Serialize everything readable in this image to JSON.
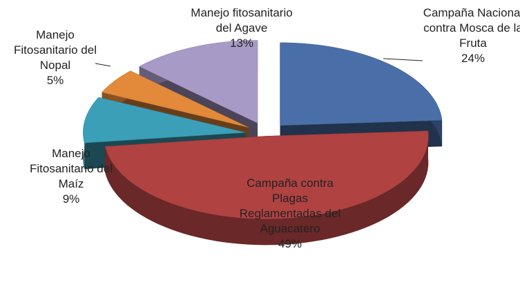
{
  "chart_data": {
    "type": "pie",
    "categories": [
      "Campaña Nacional contra Mosca de la Fruta",
      "Campaña contra Plagas Reglamentadas del Aguacatero",
      "Manejo Fitosanitario del Maíz",
      "Manejo Fitosanitario del Nopal",
      "Manejo fitosanitario del Agave"
    ],
    "values": [
      24,
      49,
      9,
      5,
      13
    ],
    "value_labels": [
      "24%",
      "49%",
      "9%",
      "5%",
      "13%"
    ],
    "colors": [
      "#4a6fa8",
      "#b04242",
      "#3c9fb8",
      "#e2893a",
      "#a89ac6"
    ]
  }
}
